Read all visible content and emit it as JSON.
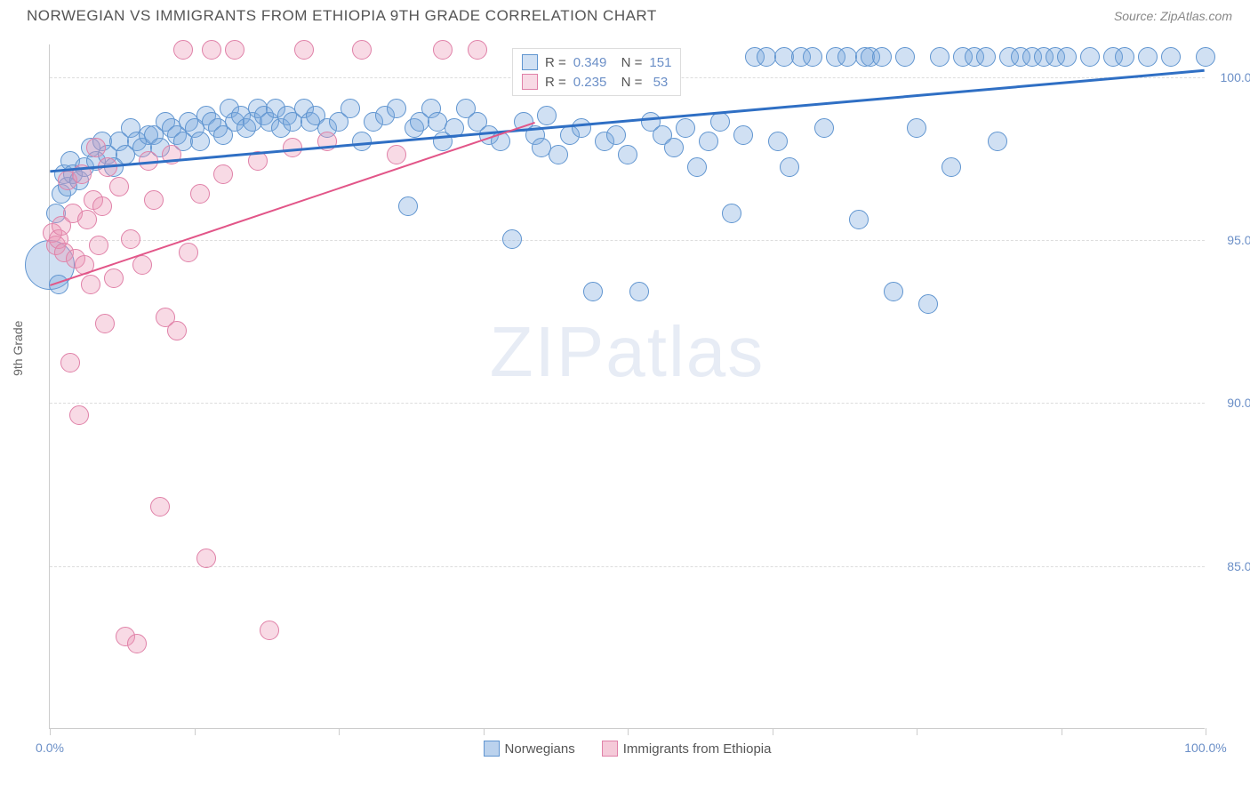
{
  "header": {
    "title": "NORWEGIAN VS IMMIGRANTS FROM ETHIOPIA 9TH GRADE CORRELATION CHART",
    "source_label": "Source:",
    "source_name": "ZipAtlas.com"
  },
  "chart": {
    "type": "scatter",
    "y_axis_title": "9th Grade",
    "xlim": [
      0,
      100
    ],
    "ylim": [
      80,
      101
    ],
    "x_ticks": [
      0,
      12.5,
      25,
      37.5,
      50,
      62.5,
      75,
      87.5,
      100
    ],
    "x_tick_labels": {
      "0": "0.0%",
      "100": "100.0%"
    },
    "y_ticks": [
      85.0,
      90.0,
      95.0,
      100.0
    ],
    "y_tick_labels": [
      "85.0%",
      "90.0%",
      "95.0%",
      "100.0%"
    ],
    "grid_color": "#dddddd",
    "background": "#ffffff",
    "watermark": "ZIPatlas",
    "series": [
      {
        "name": "Norwegians",
        "color_fill": "rgba(120, 165, 220, 0.35)",
        "color_stroke": "#6095d0",
        "marker_radius": 11,
        "trend": {
          "x1": 0,
          "y1": 97.1,
          "x2": 100,
          "y2": 100.2,
          "color": "#2f6fc4",
          "width": 3
        },
        "stats": {
          "R": "0.349",
          "N": "151"
        },
        "points": [
          [
            0,
            94.2,
            28
          ],
          [
            0.5,
            95.8
          ],
          [
            0.8,
            93.6
          ],
          [
            1,
            96.4
          ],
          [
            1.2,
            97.0
          ],
          [
            1.5,
            96.6
          ],
          [
            1.8,
            97.4
          ],
          [
            2,
            97.0
          ],
          [
            2.5,
            96.8
          ],
          [
            3,
            97.2
          ],
          [
            3.5,
            97.8
          ],
          [
            4,
            97.4
          ],
          [
            4.5,
            98.0
          ],
          [
            5,
            97.6
          ],
          [
            5.5,
            97.2
          ],
          [
            6,
            98.0
          ],
          [
            6.5,
            97.6
          ],
          [
            7,
            98.4
          ],
          [
            7.5,
            98.0
          ],
          [
            8,
            97.8
          ],
          [
            8.5,
            98.2
          ],
          [
            9,
            98.2
          ],
          [
            9.5,
            97.8
          ],
          [
            10,
            98.6
          ],
          [
            10.5,
            98.4
          ],
          [
            11,
            98.2
          ],
          [
            11.5,
            98.0
          ],
          [
            12,
            98.6
          ],
          [
            12.5,
            98.4
          ],
          [
            13,
            98.0
          ],
          [
            13.5,
            98.8
          ],
          [
            14,
            98.6
          ],
          [
            14.5,
            98.4
          ],
          [
            15,
            98.2
          ],
          [
            15.5,
            99.0
          ],
          [
            16,
            98.6
          ],
          [
            16.5,
            98.8
          ],
          [
            17,
            98.4
          ],
          [
            17.5,
            98.6
          ],
          [
            18,
            99.0
          ],
          [
            18.5,
            98.8
          ],
          [
            19,
            98.6
          ],
          [
            19.5,
            99.0
          ],
          [
            20,
            98.4
          ],
          [
            20.5,
            98.8
          ],
          [
            21,
            98.6
          ],
          [
            22,
            99.0
          ],
          [
            22.5,
            98.6
          ],
          [
            23,
            98.8
          ],
          [
            24,
            98.4
          ],
          [
            25,
            98.6
          ],
          [
            26,
            99.0
          ],
          [
            27,
            98.0
          ],
          [
            28,
            98.6
          ],
          [
            29,
            98.8
          ],
          [
            30,
            99.0
          ],
          [
            31,
            96.0
          ],
          [
            31.5,
            98.4
          ],
          [
            32,
            98.6
          ],
          [
            33,
            99.0
          ],
          [
            33.5,
            98.6
          ],
          [
            34,
            98.0
          ],
          [
            35,
            98.4
          ],
          [
            36,
            99.0
          ],
          [
            37,
            98.6
          ],
          [
            38,
            98.2
          ],
          [
            39,
            98.0
          ],
          [
            40,
            95.0
          ],
          [
            41,
            98.6
          ],
          [
            42,
            98.2
          ],
          [
            42.5,
            97.8
          ],
          [
            43,
            98.8
          ],
          [
            44,
            97.6
          ],
          [
            45,
            98.2
          ],
          [
            46,
            98.4
          ],
          [
            47,
            93.4
          ],
          [
            48,
            98.0
          ],
          [
            49,
            98.2
          ],
          [
            50,
            97.6
          ],
          [
            51,
            93.4
          ],
          [
            52,
            98.6
          ],
          [
            53,
            98.2
          ],
          [
            54,
            97.8
          ],
          [
            55,
            98.4
          ],
          [
            56,
            97.2
          ],
          [
            57,
            98.0
          ],
          [
            58,
            98.6
          ],
          [
            59,
            95.8
          ],
          [
            60,
            98.2
          ],
          [
            61,
            100.6
          ],
          [
            62,
            100.6
          ],
          [
            63,
            98.0
          ],
          [
            63.5,
            100.6
          ],
          [
            64,
            97.2
          ],
          [
            65,
            100.6
          ],
          [
            66,
            100.6
          ],
          [
            67,
            98.4
          ],
          [
            68,
            100.6
          ],
          [
            69,
            100.6
          ],
          [
            70,
            95.6
          ],
          [
            70.5,
            100.6
          ],
          [
            71,
            100.6
          ],
          [
            72,
            100.6
          ],
          [
            73,
            93.4
          ],
          [
            74,
            100.6
          ],
          [
            75,
            98.4
          ],
          [
            76,
            93.0
          ],
          [
            77,
            100.6
          ],
          [
            78,
            97.2
          ],
          [
            79,
            100.6
          ],
          [
            80,
            100.6
          ],
          [
            81,
            100.6
          ],
          [
            82,
            98.0
          ],
          [
            83,
            100.6
          ],
          [
            84,
            100.6
          ],
          [
            85,
            100.6
          ],
          [
            86,
            100.6
          ],
          [
            87,
            100.6
          ],
          [
            88,
            100.6
          ],
          [
            90,
            100.6
          ],
          [
            92,
            100.6
          ],
          [
            93,
            100.6
          ],
          [
            95,
            100.6
          ],
          [
            97,
            100.6
          ],
          [
            100,
            100.6
          ]
        ]
      },
      {
        "name": "Immigrants from Ethiopia",
        "color_fill": "rgba(235, 150, 180, 0.35)",
        "color_stroke": "#e081a8",
        "marker_radius": 11,
        "trend": {
          "x1": 0,
          "y1": 93.6,
          "x2": 42,
          "y2": 98.6,
          "color": "#e25588",
          "width": 2
        },
        "stats": {
          "R": "0.235",
          "N": "53"
        },
        "points": [
          [
            0.2,
            95.2
          ],
          [
            0.5,
            94.8
          ],
          [
            0.8,
            95.0
          ],
          [
            1.0,
            95.4
          ],
          [
            1.2,
            94.6
          ],
          [
            1.5,
            96.8
          ],
          [
            1.8,
            91.2
          ],
          [
            2.0,
            95.8
          ],
          [
            2.2,
            94.4
          ],
          [
            2.5,
            89.6
          ],
          [
            2.8,
            97.0
          ],
          [
            3.0,
            94.2
          ],
          [
            3.2,
            95.6
          ],
          [
            3.5,
            93.6
          ],
          [
            3.8,
            96.2
          ],
          [
            4.0,
            97.8
          ],
          [
            4.2,
            94.8
          ],
          [
            4.5,
            96.0
          ],
          [
            4.8,
            92.4
          ],
          [
            5.0,
            97.2
          ],
          [
            5.5,
            93.8
          ],
          [
            6.0,
            96.6
          ],
          [
            6.5,
            82.8
          ],
          [
            7.0,
            95.0
          ],
          [
            7.5,
            82.6
          ],
          [
            8.0,
            94.2
          ],
          [
            8.5,
            97.4
          ],
          [
            9.0,
            96.2
          ],
          [
            9.5,
            86.8
          ],
          [
            10.0,
            92.6
          ],
          [
            10.5,
            97.6
          ],
          [
            11.0,
            92.2
          ],
          [
            11.5,
            100.8
          ],
          [
            12.0,
            94.6
          ],
          [
            13.0,
            96.4
          ],
          [
            13.5,
            85.2
          ],
          [
            14.0,
            100.8
          ],
          [
            15.0,
            97.0
          ],
          [
            16.0,
            100.8
          ],
          [
            18.0,
            97.4
          ],
          [
            19.0,
            83.0
          ],
          [
            21.0,
            97.8
          ],
          [
            22.0,
            100.8
          ],
          [
            24.0,
            98.0
          ],
          [
            27.0,
            100.8
          ],
          [
            30.0,
            97.6
          ],
          [
            34.0,
            100.8
          ],
          [
            37.0,
            100.8
          ]
        ]
      }
    ],
    "bottom_legend": [
      {
        "label": "Norwegians",
        "fill": "rgba(120, 165, 220, 0.5)",
        "stroke": "#6095d0"
      },
      {
        "label": "Immigrants from Ethiopia",
        "fill": "rgba(235, 150, 180, 0.5)",
        "stroke": "#e081a8"
      }
    ]
  }
}
